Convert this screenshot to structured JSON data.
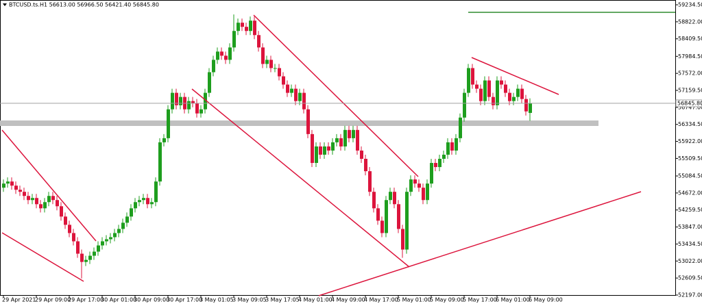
{
  "chart_data": {
    "type": "candlestick",
    "title": "BTCUSD.ts.H1  56613.00 56966.50 56421.40 56845.80",
    "categories": [
      "29 Apr 2021",
      null,
      null,
      null,
      null,
      null,
      null,
      null,
      "29 Apr 09:00",
      null,
      null,
      null,
      null,
      null,
      null,
      null,
      "29 Apr 17:00",
      null,
      null,
      null,
      null,
      null,
      null,
      null,
      "30 Apr 01:00",
      null,
      null,
      null,
      null,
      null,
      null,
      null,
      "30 Apr 09:00",
      null,
      null,
      null,
      null,
      null,
      null,
      null,
      "30 Apr 17:00",
      null,
      null,
      null,
      null,
      null,
      null,
      null,
      "3 May 01:05",
      null,
      null,
      null,
      null,
      null,
      null,
      null,
      "3 May 09:05",
      null,
      null,
      null,
      null,
      null,
      null,
      null,
      "3 May 17:05",
      null,
      null,
      null,
      null,
      null,
      null,
      null,
      "4 May 01:00",
      null,
      null,
      null,
      null,
      null,
      null,
      null,
      "4 May 09:00",
      null,
      null,
      null,
      null,
      null,
      null,
      null,
      "4 May 17:00",
      null,
      null,
      null,
      null,
      null,
      null,
      null,
      "5 May 01:00",
      null,
      null,
      null,
      null,
      null,
      null,
      null,
      "5 May 09:00",
      null,
      null,
      null,
      null,
      null,
      null,
      null,
      "5 May 17:00",
      null,
      null,
      null,
      null,
      null,
      null,
      null,
      "6 May 01:00",
      null,
      null,
      null,
      null,
      null,
      null,
      null,
      "6 May 09:00"
    ],
    "open": [
      54800,
      54900,
      54950,
      54850,
      54750,
      54700,
      54600,
      54500,
      54550,
      54400,
      54300,
      54450,
      54600,
      54500,
      54350,
      54100,
      53900,
      53700,
      53500,
      53200,
      53000,
      53050,
      53150,
      53250,
      53400,
      53500,
      53550,
      53600,
      53700,
      53800,
      53950,
      54100,
      54300,
      54450,
      54500,
      54550,
      54400,
      54450,
      54950,
      55900,
      56000,
      56700,
      57100,
      56800,
      57000,
      56700,
      56900,
      56850,
      56600,
      56700,
      57100,
      57600,
      57900,
      58100,
      58000,
      57900,
      58200,
      58600,
      58800,
      58700,
      58600,
      58850,
      58500,
      58200,
      57800,
      57900,
      57700,
      57700,
      57500,
      57300,
      57100,
      57200,
      56900,
      57100,
      56700,
      56100,
      55400,
      55800,
      55600,
      55800,
      55700,
      55900,
      56000,
      55800,
      56200,
      56000,
      56200,
      55700,
      55500,
      55200,
      54700,
      54300,
      54000,
      53700,
      54500,
      54700,
      54400,
      53800,
      53300,
      54700,
      55000,
      54900,
      54800,
      54500,
      54900,
      55400,
      55300,
      55500,
      55600,
      55900,
      55700,
      56000,
      56500,
      57100,
      57700,
      57300,
      57200,
      56900,
      57400,
      57000,
      56800,
      57400,
      57300,
      57100,
      56900,
      57000,
      57200,
      56950,
      56613
    ],
    "high": [
      55000,
      55050,
      55050,
      54950,
      54850,
      54800,
      54700,
      54650,
      54650,
      54500,
      54550,
      54700,
      54700,
      54600,
      54450,
      54200,
      54000,
      53800,
      53600,
      53300,
      53150,
      53250,
      53350,
      53500,
      53600,
      53650,
      53700,
      53800,
      53900,
      54050,
      54200,
      54400,
      54550,
      54600,
      54650,
      54650,
      54550,
      55050,
      56000,
      56100,
      56800,
      57200,
      57200,
      57100,
      57100,
      57000,
      57000,
      56950,
      56800,
      57200,
      57700,
      58000,
      58200,
      58200,
      58100,
      58300,
      59000,
      58900,
      58900,
      58800,
      58950,
      58950,
      58600,
      58300,
      58000,
      58000,
      57800,
      57800,
      57600,
      57400,
      57300,
      57300,
      57200,
      57200,
      56800,
      56200,
      55900,
      55900,
      55900,
      55900,
      56000,
      56100,
      56100,
      56300,
      56300,
      56300,
      56300,
      55800,
      55600,
      55300,
      54800,
      54400,
      54100,
      54600,
      54800,
      54800,
      54500,
      53900,
      54800,
      55100,
      55100,
      55000,
      54900,
      55000,
      55500,
      55500,
      55600,
      55700,
      56000,
      56000,
      56100,
      56600,
      57200,
      57800,
      57800,
      57400,
      57300,
      57500,
      57500,
      57100,
      57500,
      57500,
      57400,
      57200,
      57100,
      57300,
      57300,
      57050,
      56966.5
    ],
    "low": [
      54700,
      54800,
      54750,
      54650,
      54600,
      54500,
      54400,
      54400,
      54300,
      54200,
      54200,
      54350,
      54400,
      54250,
      54000,
      53800,
      53600,
      53400,
      53100,
      52600,
      52900,
      52950,
      53050,
      53150,
      53300,
      53400,
      53450,
      53500,
      53600,
      53700,
      53850,
      54000,
      54200,
      54350,
      54400,
      54300,
      54300,
      54350,
      54850,
      55800,
      55900,
      56600,
      56700,
      56700,
      56600,
      56600,
      56750,
      56500,
      56500,
      56600,
      57000,
      57500,
      57800,
      57900,
      57800,
      57800,
      58100,
      58500,
      58600,
      58500,
      58500,
      58400,
      58100,
      57700,
      57700,
      57600,
      57600,
      57400,
      57200,
      57000,
      57000,
      56800,
      56800,
      56600,
      56000,
      55300,
      55300,
      55500,
      55500,
      55600,
      55600,
      55800,
      55700,
      55700,
      55900,
      55900,
      55600,
      55400,
      55100,
      54600,
      54200,
      53900,
      53600,
      53600,
      54400,
      54300,
      53700,
      53100,
      53200,
      54600,
      54800,
      54700,
      54400,
      54400,
      54800,
      55200,
      55200,
      55400,
      55500,
      55600,
      55600,
      55900,
      56400,
      57000,
      57200,
      57100,
      56800,
      56800,
      56900,
      56700,
      56700,
      57200,
      57000,
      56800,
      56800,
      56900,
      56850,
      56550,
      56421.4
    ],
    "close": [
      54900,
      54950,
      54850,
      54750,
      54700,
      54600,
      54500,
      54550,
      54400,
      54300,
      54450,
      54600,
      54500,
      54350,
      54100,
      53900,
      53700,
      53500,
      53200,
      53000,
      53050,
      53150,
      53250,
      53400,
      53500,
      53550,
      53600,
      53700,
      53800,
      53950,
      54100,
      54300,
      54450,
      54500,
      54550,
      54400,
      54450,
      54950,
      55900,
      56000,
      56700,
      57100,
      56800,
      57000,
      56700,
      56900,
      56850,
      56600,
      56700,
      57100,
      57600,
      57900,
      58100,
      58000,
      57900,
      58200,
      58600,
      58800,
      58700,
      58600,
      58850,
      58500,
      58200,
      57800,
      57900,
      57700,
      57700,
      57500,
      57300,
      57100,
      57200,
      56900,
      57100,
      56700,
      56100,
      55400,
      55800,
      55600,
      55800,
      55700,
      55900,
      56000,
      55800,
      56200,
      56000,
      56200,
      55700,
      55500,
      55200,
      54700,
      54300,
      54000,
      53700,
      54500,
      54700,
      54400,
      53800,
      53300,
      54700,
      55000,
      54900,
      54800,
      54500,
      54900,
      55400,
      55300,
      55500,
      55600,
      55900,
      55700,
      56000,
      56500,
      57100,
      57700,
      57300,
      57200,
      56900,
      57400,
      57000,
      56800,
      57400,
      57300,
      57100,
      56900,
      57000,
      57200,
      56950,
      56650,
      56845.8
    ],
    "up_color": "#1e9e1e",
    "down_color": "#dc143c",
    "ylim": [
      52197,
      59234.5
    ],
    "yticks": [
      {
        "value": 52197,
        "label": "52197.00"
      },
      {
        "value": 52609.5,
        "label": "52609.50"
      },
      {
        "value": 53022,
        "label": "53022.00"
      },
      {
        "value": 53434.5,
        "label": "53434.50"
      },
      {
        "value": 53847,
        "label": "53847.00"
      },
      {
        "value": 54259.5,
        "label": "54259.50"
      },
      {
        "value": 54672,
        "label": "54672.00"
      },
      {
        "value": 55084.5,
        "label": "55084.50"
      },
      {
        "value": 55509.5,
        "label": "55509.50"
      },
      {
        "value": 55922,
        "label": "55922.00"
      },
      {
        "value": 56334.5,
        "label": "56334.50"
      },
      {
        "value": 56747,
        "label": "56747.00"
      },
      {
        "value": 57159.5,
        "label": "57159.50"
      },
      {
        "value": 57572,
        "label": "57572.00"
      },
      {
        "value": 57984.5,
        "label": "57984.50"
      },
      {
        "value": 58409.5,
        "label": "58409.50"
      },
      {
        "value": 58822,
        "label": "58822.00"
      },
      {
        "value": 59234.5,
        "label": "59234.50"
      }
    ],
    "current_price": {
      "value": 56845.8,
      "label": "56845.80"
    },
    "grid": false
  }
}
